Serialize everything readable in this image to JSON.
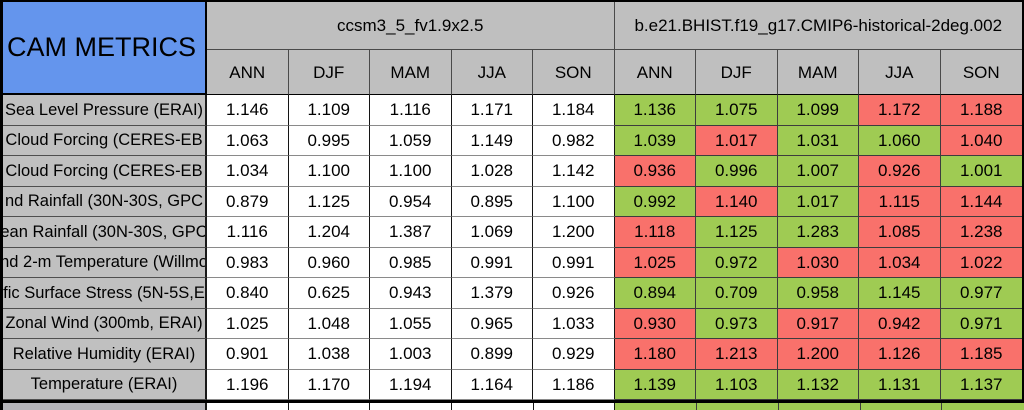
{
  "chart_data": {
    "type": "table",
    "title": "CAM METRICS",
    "column_groups": [
      {
        "label": "ccsm3_5_fv1.9x2.5"
      },
      {
        "label": "b.e21.BHIST.f19_g17.CMIP6-historical-2deg.002"
      }
    ],
    "season_columns": [
      "ANN",
      "DJF",
      "MAM",
      "JJA",
      "SON"
    ],
    "rows": [
      {
        "label": "Sea Level Pressure (ERAI)",
        "model1": [
          "1.146",
          "1.109",
          "1.116",
          "1.171",
          "1.184"
        ],
        "model2": [
          "1.136",
          "1.075",
          "1.099",
          "1.172",
          "1.188"
        ],
        "model2_colors": [
          "green",
          "green",
          "green",
          "red",
          "red"
        ]
      },
      {
        "label": "Cloud Forcing (CERES-EB",
        "model1": [
          "1.063",
          "0.995",
          "1.059",
          "1.149",
          "0.982"
        ],
        "model2": [
          "1.039",
          "1.017",
          "1.031",
          "1.060",
          "1.040"
        ],
        "model2_colors": [
          "green",
          "red",
          "green",
          "green",
          "red"
        ]
      },
      {
        "label": "Cloud Forcing (CERES-EB",
        "model1": [
          "1.034",
          "1.100",
          "1.100",
          "1.028",
          "1.142"
        ],
        "model2": [
          "0.936",
          "0.996",
          "1.007",
          "0.926",
          "1.001"
        ],
        "model2_colors": [
          "red",
          "green",
          "green",
          "red",
          "green"
        ]
      },
      {
        "label": "nd Rainfall (30N-30S, GPC",
        "model1": [
          "0.879",
          "1.125",
          "0.954",
          "0.895",
          "1.100"
        ],
        "model2": [
          "0.992",
          "1.140",
          "1.017",
          "1.115",
          "1.144"
        ],
        "model2_colors": [
          "green",
          "red",
          "green",
          "red",
          "red"
        ]
      },
      {
        "label": "ean Rainfall (30N-30S, GPC",
        "model1": [
          "1.116",
          "1.204",
          "1.387",
          "1.069",
          "1.200"
        ],
        "model2": [
          "1.118",
          "1.125",
          "1.283",
          "1.085",
          "1.238"
        ],
        "model2_colors": [
          "red",
          "green",
          "green",
          "red",
          "red"
        ]
      },
      {
        "label": "nd 2-m Temperature (Willmo",
        "model1": [
          "0.983",
          "0.960",
          "0.985",
          "0.991",
          "0.991"
        ],
        "model2": [
          "1.025",
          "0.972",
          "1.030",
          "1.034",
          "1.022"
        ],
        "model2_colors": [
          "red",
          "green",
          "red",
          "red",
          "red"
        ]
      },
      {
        "label": "fic Surface Stress (5N-5S,E",
        "model1": [
          "0.840",
          "0.625",
          "0.943",
          "1.379",
          "0.926"
        ],
        "model2": [
          "0.894",
          "0.709",
          "0.958",
          "1.145",
          "0.977"
        ],
        "model2_colors": [
          "green",
          "green",
          "green",
          "green",
          "green"
        ]
      },
      {
        "label": "Zonal Wind (300mb, ERAI)",
        "model1": [
          "1.025",
          "1.048",
          "1.055",
          "0.965",
          "1.033"
        ],
        "model2": [
          "0.930",
          "0.973",
          "0.917",
          "0.942",
          "0.971"
        ],
        "model2_colors": [
          "red",
          "green",
          "red",
          "red",
          "green"
        ]
      },
      {
        "label": "Relative Humidity (ERAI)",
        "model1": [
          "0.901",
          "1.038",
          "1.003",
          "0.899",
          "0.929"
        ],
        "model2": [
          "1.180",
          "1.213",
          "1.200",
          "1.126",
          "1.185"
        ],
        "model2_colors": [
          "red",
          "red",
          "red",
          "red",
          "red"
        ]
      },
      {
        "label": "Temperature (ERAI)",
        "model1": [
          "1.196",
          "1.170",
          "1.194",
          "1.164",
          "1.186"
        ],
        "model2": [
          "1.139",
          "1.103",
          "1.132",
          "1.131",
          "1.137"
        ],
        "model2_colors": [
          "green",
          "green",
          "green",
          "green",
          "green"
        ]
      }
    ],
    "layout": {
      "grid": "on",
      "bottom_partial_row": {
        "label_color": "gray",
        "model1_cells": "white",
        "model2_cells": "green"
      }
    }
  },
  "colors": {
    "header_blue": "#6495ed",
    "header_gray": "#bfbfbf",
    "label_gray": "#c0c0c0",
    "good_green": "#9fcb53",
    "bad_red": "#f9716b",
    "cell_white": "#ffffff"
  }
}
